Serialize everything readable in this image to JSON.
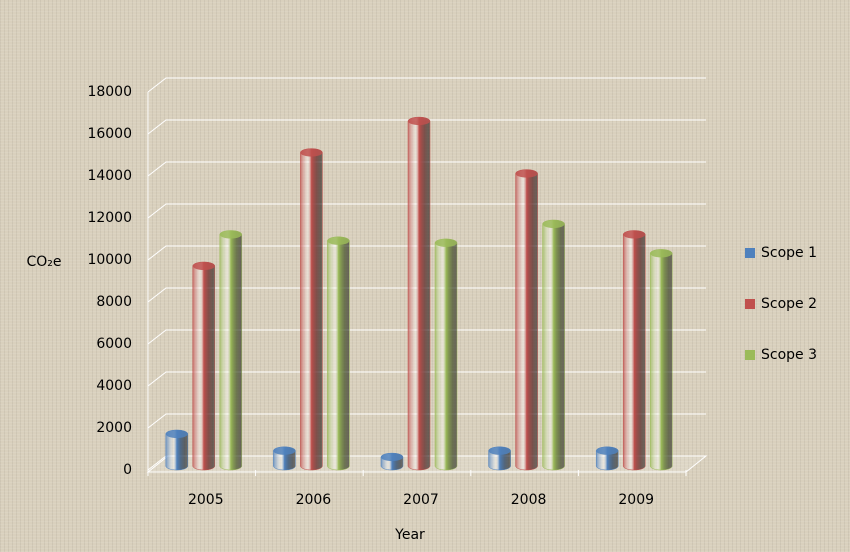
{
  "chart_data": {
    "type": "bar",
    "x_label": "Year",
    "y_label": "CO₂e",
    "categories": [
      "2005",
      "2006",
      "2007",
      "2008",
      "2009"
    ],
    "series": [
      {
        "name": "Scope 1",
        "color": "#4f81bd",
        "values": [
          2000,
          1200,
          900,
          1200,
          1200
        ]
      },
      {
        "name": "Scope 2",
        "color": "#c0504d",
        "values": [
          10000,
          15400,
          16900,
          14400,
          11500
        ]
      },
      {
        "name": "Scope 3",
        "color": "#9bbb59",
        "values": [
          11500,
          11200,
          11100,
          12000,
          10600
        ]
      }
    ],
    "ylim": [
      0,
      18000
    ],
    "yticks": [
      0,
      2000,
      4000,
      6000,
      8000,
      10000,
      12000,
      14000,
      16000,
      18000
    ],
    "grid": true,
    "legend": "right"
  }
}
